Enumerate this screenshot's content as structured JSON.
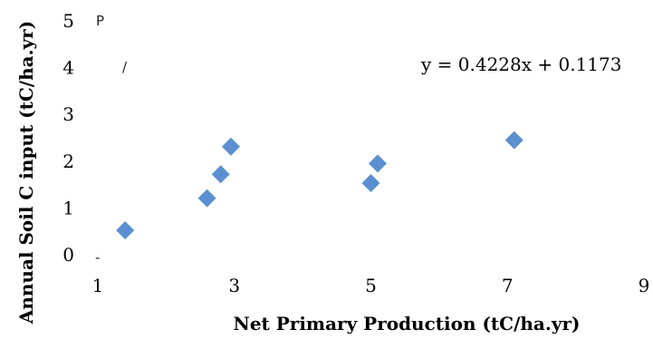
{
  "chart_data": {
    "type": "scatter",
    "title": "",
    "xlabel": "Net Primary Production (tC/ha.yr)",
    "ylabel": "Annual Soil C input (tC/ha.yr)",
    "xlim": [
      1,
      9
    ],
    "ylim": [
      0,
      5
    ],
    "x_ticks": [
      1,
      3,
      5,
      7,
      9
    ],
    "y_ticks": [
      0,
      1,
      2,
      3,
      4,
      5
    ],
    "grid": false,
    "legend": "none",
    "marker": "diamond",
    "marker_color": "#5B8FD0",
    "trendline_equation": "y = 0.4228x + 0.1173",
    "stray_marks": {
      "top": "P",
      "slash": "/",
      "dash": "-"
    },
    "series": [
      {
        "points": [
          {
            "x": 1.4,
            "y": 0.52
          },
          {
            "x": 2.6,
            "y": 1.21
          },
          {
            "x": 2.8,
            "y": 1.72
          },
          {
            "x": 2.95,
            "y": 2.31
          },
          {
            "x": 5.0,
            "y": 1.53
          },
          {
            "x": 5.1,
            "y": 1.95
          },
          {
            "x": 7.1,
            "y": 2.45
          }
        ]
      }
    ]
  }
}
